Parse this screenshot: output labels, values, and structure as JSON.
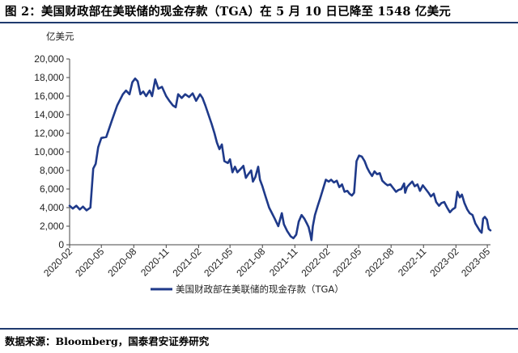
{
  "header": {
    "title": "图 2：美国财政部在美联储的现金存款（TGA）在 5 月 10 日已降至 1548 亿美元"
  },
  "footer": {
    "source": "数据来源：Bloomberg，国泰君安证券研究"
  },
  "colors": {
    "series": "#1f3a8a",
    "rule": "#1f3a6e",
    "axis": "#444444"
  },
  "chart_data": {
    "type": "line",
    "title": "",
    "unit_label": "亿美元",
    "xlabel": "",
    "ylabel": "",
    "ylim": [
      0,
      20000
    ],
    "y_ticks": [
      0,
      2000,
      4000,
      6000,
      8000,
      10000,
      12000,
      14000,
      16000,
      18000,
      20000
    ],
    "y_tick_labels": [
      "0",
      "2,000",
      "4,000",
      "6,000",
      "8,000",
      "10,000",
      "12,000",
      "14,000",
      "16,000",
      "18,000",
      "20,000"
    ],
    "x_range": [
      "2020-02-01",
      "2023-05-10"
    ],
    "x_ticks": [
      "2020-02",
      "2020-05",
      "2020-08",
      "2020-11",
      "2021-02",
      "2021-05",
      "2021-08",
      "2021-11",
      "2022-02",
      "2022-05",
      "2022-08",
      "2022-11",
      "2023-02",
      "2023-05"
    ],
    "grid": false,
    "legend_position": "bottom-center",
    "series": [
      {
        "name": "美国财政部在美联储的现金存款（TGA）",
        "points": [
          [
            "2020-02-01",
            4200
          ],
          [
            "2020-02-10",
            3900
          ],
          [
            "2020-02-20",
            4200
          ],
          [
            "2020-03-01",
            3800
          ],
          [
            "2020-03-10",
            4100
          ],
          [
            "2020-03-20",
            3700
          ],
          [
            "2020-03-31",
            4000
          ],
          [
            "2020-04-08",
            8200
          ],
          [
            "2020-04-15",
            8700
          ],
          [
            "2020-04-22",
            10500
          ],
          [
            "2020-05-01",
            11500
          ],
          [
            "2020-05-15",
            11600
          ],
          [
            "2020-06-01",
            13500
          ],
          [
            "2020-06-15",
            15000
          ],
          [
            "2020-07-01",
            16200
          ],
          [
            "2020-07-10",
            16600
          ],
          [
            "2020-07-20",
            16200
          ],
          [
            "2020-07-28",
            17500
          ],
          [
            "2020-08-05",
            17900
          ],
          [
            "2020-08-12",
            17600
          ],
          [
            "2020-08-20",
            16200
          ],
          [
            "2020-08-28",
            16500
          ],
          [
            "2020-09-05",
            16000
          ],
          [
            "2020-09-15",
            16600
          ],
          [
            "2020-09-22",
            16000
          ],
          [
            "2020-10-01",
            17800
          ],
          [
            "2020-10-10",
            16800
          ],
          [
            "2020-10-20",
            17000
          ],
          [
            "2020-11-01",
            16000
          ],
          [
            "2020-11-10",
            15500
          ],
          [
            "2020-11-20",
            15000
          ],
          [
            "2020-11-28",
            14800
          ],
          [
            "2020-12-05",
            16200
          ],
          [
            "2020-12-15",
            15800
          ],
          [
            "2020-12-25",
            16200
          ],
          [
            "2021-01-05",
            15900
          ],
          [
            "2021-01-15",
            16300
          ],
          [
            "2021-01-25",
            15500
          ],
          [
            "2021-02-05",
            16200
          ],
          [
            "2021-02-12",
            15800
          ],
          [
            "2021-02-20",
            15000
          ],
          [
            "2021-03-01",
            14000
          ],
          [
            "2021-03-10",
            13000
          ],
          [
            "2021-03-18",
            12000
          ],
          [
            "2021-03-25",
            11000
          ],
          [
            "2021-04-01",
            10300
          ],
          [
            "2021-04-08",
            10800
          ],
          [
            "2021-04-15",
            9000
          ],
          [
            "2021-04-25",
            8800
          ],
          [
            "2021-05-01",
            9200
          ],
          [
            "2021-05-08",
            7800
          ],
          [
            "2021-05-15",
            8400
          ],
          [
            "2021-05-22",
            7800
          ],
          [
            "2021-06-01",
            8200
          ],
          [
            "2021-06-08",
            8500
          ],
          [
            "2021-06-15",
            7200
          ],
          [
            "2021-06-22",
            7600
          ],
          [
            "2021-06-30",
            8000
          ],
          [
            "2021-07-05",
            6800
          ],
          [
            "2021-07-12",
            7300
          ],
          [
            "2021-07-20",
            8400
          ],
          [
            "2021-07-25",
            7000
          ],
          [
            "2021-08-01",
            6300
          ],
          [
            "2021-08-10",
            5200
          ],
          [
            "2021-08-20",
            4000
          ],
          [
            "2021-08-28",
            3400
          ],
          [
            "2021-09-05",
            2800
          ],
          [
            "2021-09-15",
            2000
          ],
          [
            "2021-09-25",
            3400
          ],
          [
            "2021-10-01",
            2200
          ],
          [
            "2021-10-10",
            1500
          ],
          [
            "2021-10-20",
            900
          ],
          [
            "2021-10-28",
            700
          ],
          [
            "2021-11-05",
            1100
          ],
          [
            "2021-11-12",
            2500
          ],
          [
            "2021-11-20",
            3200
          ],
          [
            "2021-11-28",
            2800
          ],
          [
            "2021-12-05",
            2300
          ],
          [
            "2021-12-10",
            1900
          ],
          [
            "2021-12-15",
            1100
          ],
          [
            "2021-12-18",
            500
          ],
          [
            "2021-12-22",
            2000
          ],
          [
            "2021-12-28",
            3200
          ],
          [
            "2022-01-05",
            4200
          ],
          [
            "2022-01-12",
            5000
          ],
          [
            "2022-01-20",
            6000
          ],
          [
            "2022-01-28",
            7000
          ],
          [
            "2022-02-05",
            6800
          ],
          [
            "2022-02-12",
            7000
          ],
          [
            "2022-02-20",
            6700
          ],
          [
            "2022-02-28",
            6900
          ],
          [
            "2022-03-07",
            6200
          ],
          [
            "2022-03-15",
            6500
          ],
          [
            "2022-03-22",
            5700
          ],
          [
            "2022-03-30",
            5800
          ],
          [
            "2022-04-05",
            5500
          ],
          [
            "2022-04-12",
            5300
          ],
          [
            "2022-04-18",
            5600
          ],
          [
            "2022-04-25",
            9000
          ],
          [
            "2022-05-02",
            9600
          ],
          [
            "2022-05-10",
            9500
          ],
          [
            "2022-05-18",
            9000
          ],
          [
            "2022-05-25",
            8300
          ],
          [
            "2022-06-01",
            7800
          ],
          [
            "2022-06-08",
            7400
          ],
          [
            "2022-06-15",
            7900
          ],
          [
            "2022-06-22",
            7600
          ],
          [
            "2022-06-30",
            7700
          ],
          [
            "2022-07-07",
            6900
          ],
          [
            "2022-07-15",
            6600
          ],
          [
            "2022-07-22",
            6400
          ],
          [
            "2022-07-30",
            6500
          ],
          [
            "2022-08-07",
            6100
          ],
          [
            "2022-08-15",
            5700
          ],
          [
            "2022-08-22",
            5900
          ],
          [
            "2022-08-30",
            6000
          ],
          [
            "2022-09-07",
            6600
          ],
          [
            "2022-09-10",
            5600
          ],
          [
            "2022-09-15",
            6200
          ],
          [
            "2022-09-22",
            6500
          ],
          [
            "2022-09-30",
            6800
          ],
          [
            "2022-10-07",
            6300
          ],
          [
            "2022-10-15",
            6500
          ],
          [
            "2022-10-22",
            5800
          ],
          [
            "2022-10-30",
            6400
          ],
          [
            "2022-11-07",
            6000
          ],
          [
            "2022-11-15",
            5600
          ],
          [
            "2022-11-22",
            5200
          ],
          [
            "2022-11-30",
            5500
          ],
          [
            "2022-12-07",
            4600
          ],
          [
            "2022-12-15",
            4200
          ],
          [
            "2022-12-22",
            4500
          ],
          [
            "2022-12-30",
            4600
          ],
          [
            "2023-01-07",
            4000
          ],
          [
            "2023-01-15",
            3500
          ],
          [
            "2023-01-22",
            3800
          ],
          [
            "2023-01-30",
            4000
          ],
          [
            "2023-02-05",
            5700
          ],
          [
            "2023-02-12",
            5100
          ],
          [
            "2023-02-18",
            5400
          ],
          [
            "2023-02-25",
            4500
          ],
          [
            "2023-03-05",
            3800
          ],
          [
            "2023-03-12",
            3400
          ],
          [
            "2023-03-20",
            3200
          ],
          [
            "2023-03-28",
            2300
          ],
          [
            "2023-04-05",
            1800
          ],
          [
            "2023-04-10",
            1500
          ],
          [
            "2023-04-15",
            1300
          ],
          [
            "2023-04-19",
            2800
          ],
          [
            "2023-04-24",
            3000
          ],
          [
            "2023-04-30",
            2700
          ],
          [
            "2023-05-05",
            1700
          ],
          [
            "2023-05-10",
            1548
          ]
        ]
      }
    ]
  }
}
